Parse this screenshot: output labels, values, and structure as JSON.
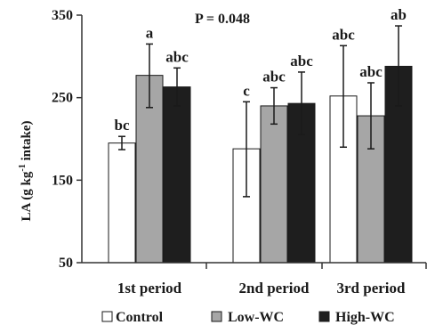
{
  "chart_data": {
    "type": "bar",
    "categories": [
      "1st period",
      "2nd period",
      "3rd period"
    ],
    "series": [
      {
        "name": "Control",
        "color": "#ffffff",
        "values": [
          195,
          188,
          252
        ],
        "error": [
          [
            187,
            203
          ],
          [
            130,
            245
          ],
          [
            190,
            313
          ]
        ],
        "labels": [
          "bc",
          "c",
          "abc"
        ]
      },
      {
        "name": "Low-WC",
        "color": "#a6a6a6",
        "values": [
          277,
          240,
          228
        ],
        "error": [
          [
            238,
            315
          ],
          [
            218,
            262
          ],
          [
            188,
            268
          ]
        ],
        "labels": [
          "a",
          "abc",
          "abc"
        ]
      },
      {
        "name": "High-WC",
        "color": "#1e1e1e",
        "values": [
          263,
          243,
          288
        ],
        "error": [
          [
            240,
            286
          ],
          [
            205,
            281
          ],
          [
            240,
            337
          ]
        ],
        "labels": [
          "abc",
          "abc",
          "ab"
        ]
      }
    ],
    "ylim": [
      50,
      350
    ],
    "yticks": [
      50,
      150,
      250,
      350
    ],
    "ylabel_main": "LA (g kg",
    "ylabel_sup": "-1",
    "ylabel_end": " intake)",
    "annotation": "P = 0.048",
    "legend_position": "bottom"
  }
}
